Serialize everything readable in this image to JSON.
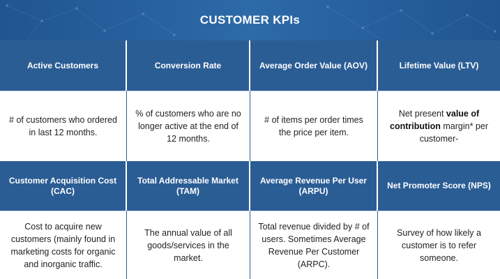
{
  "title": "CUSTOMER KPIs",
  "kpis": [
    {
      "name": "Active Customers",
      "description": "# of customers who ordered in last 12 months."
    },
    {
      "name": "Conversion Rate",
      "description": "% of customers who are no longer active at the end of 12 months."
    },
    {
      "name": "Average Order Value (AOV)",
      "description": "# of items per order times the price per item."
    },
    {
      "name": "Lifetime Value (LTV)",
      "description_pre": "Net present ",
      "description_bold": "value of contribution",
      "description_post": " margin* per customer-"
    },
    {
      "name": "Customer Acquisition Cost (CAC)",
      "description": "Cost to acquire new customers (mainly found in marketing costs for organic and inorganic traffic."
    },
    {
      "name": "Total Addressable Market (TAM)",
      "description": "The annual value of all goods/services in the market."
    },
    {
      "name": "Average Revenue Per User (ARPU)",
      "description": "Total revenue divided by # of users. Sometimes Average Revenue Per Customer (ARPC)."
    },
    {
      "name": "Net Promoter Score (NPS)",
      "description": "Survey of how likely a customer is to refer someone."
    }
  ],
  "colors": {
    "header_blue": "#2b5d95",
    "banner_blue": "#1f5590"
  }
}
